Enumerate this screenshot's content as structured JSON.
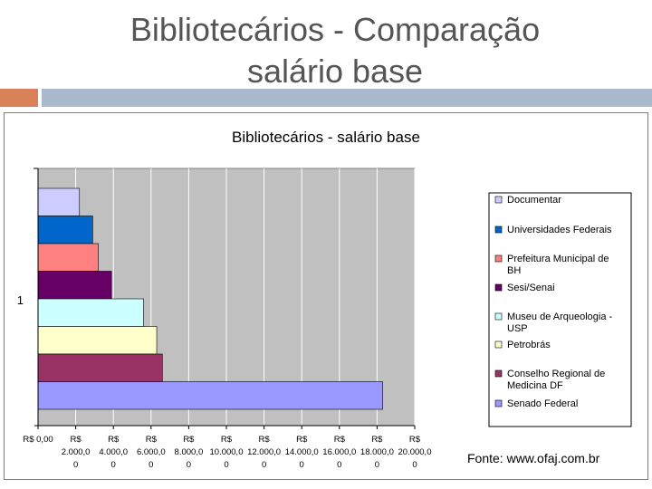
{
  "slide": {
    "title_line1": "Bibliotecários - Comparação",
    "title_line2": "salário base",
    "source": "Fonte: www.ofaj.com.br"
  },
  "chart_data": {
    "type": "bar",
    "orientation": "horizontal",
    "title": "Bibliotecários - salário base",
    "categories": [
      "1"
    ],
    "xlim": [
      0,
      20000
    ],
    "xtick_values": [
      0,
      2000,
      4000,
      6000,
      8000,
      10000,
      12000,
      14000,
      16000,
      18000,
      20000
    ],
    "xtick_labels": [
      "R$ 0,00",
      "R$ 2.000,00",
      "R$ 4.000,00",
      "R$ 6.000,00",
      "R$ 8.000,00",
      "R$ 10.000,00",
      "R$ 12.000,00",
      "R$ 14.000,00",
      "R$ 16.000,00",
      "R$ 18.000,00",
      "R$ 20.000,00"
    ],
    "grid": true,
    "legend_position": "right",
    "series": [
      {
        "name": "Documentar",
        "values": [
          2200
        ],
        "color": "#ccccff"
      },
      {
        "name": "Universidades Federais",
        "values": [
          2900
        ],
        "color": "#0066cc"
      },
      {
        "name": "Prefeitura Municipal de BH",
        "values": [
          3200
        ],
        "color": "#ff8080"
      },
      {
        "name": "Sesi/Senai",
        "values": [
          3900
        ],
        "color": "#660066"
      },
      {
        "name": "Museu de Arqueologia - USP",
        "values": [
          5600
        ],
        "color": "#ccffff"
      },
      {
        "name": "Petrobrás",
        "values": [
          6300
        ],
        "color": "#ffffcc"
      },
      {
        "name": "Conselho Regional de Medicina DF",
        "values": [
          6600
        ],
        "color": "#993366"
      },
      {
        "name": "Senado Federal",
        "values": [
          18300
        ],
        "color": "#9999ff"
      }
    ]
  }
}
